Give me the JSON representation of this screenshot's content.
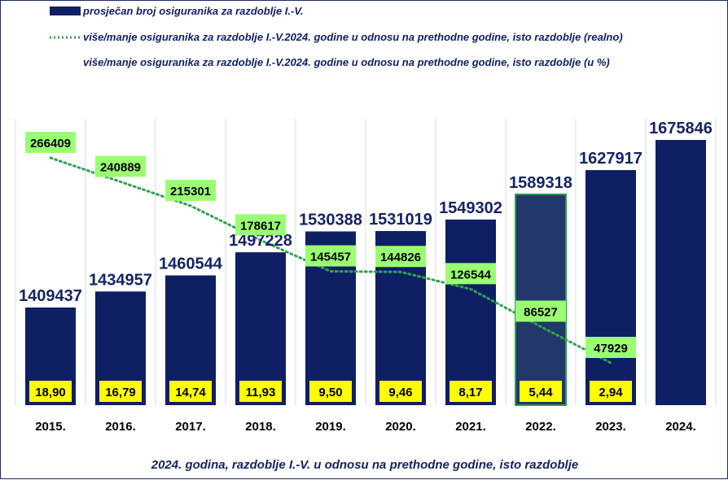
{
  "chart_data": {
    "type": "bar",
    "categories": [
      "2015.",
      "2016.",
      "2017.",
      "2018.",
      "2019.",
      "2020.",
      "2021.",
      "2022.",
      "2023.",
      "2024."
    ],
    "series": [
      {
        "name": "prosječan broj osiguranika za razdoblje I.-V.",
        "type": "bar",
        "values": [
          1409437,
          1434957,
          1460544,
          1497228,
          1530388,
          1531019,
          1549302,
          1589318,
          1627917,
          1675846
        ],
        "labels": [
          "1409437",
          "1434957",
          "1460544",
          "1497228",
          "1530388",
          "1531019",
          "1549302",
          "1589318",
          "1627917",
          "1675846"
        ]
      },
      {
        "name": "više/manje osiguranika za razdoblje I.-V.2024. godine u odnosu na prethodne godine, isto razdoblje (realno)",
        "type": "line",
        "values": [
          266409,
          240889,
          215301,
          178617,
          145457,
          144826,
          126544,
          86527,
          47929,
          null
        ],
        "labels": [
          "266409",
          "240889",
          "215301",
          "178617",
          "145457",
          "144826",
          "126544",
          "86527",
          "47929",
          ""
        ]
      },
      {
        "name": "više/manje osiguranika za razdoblje I.-V.2024. godine u odnosu na prethodne godine, isto razdoblje (u %)",
        "type": "label",
        "values": [
          18.9,
          16.79,
          14.74,
          11.93,
          9.5,
          9.46,
          8.17,
          5.44,
          2.94,
          null
        ],
        "labels": [
          "18,90",
          "16,79",
          "14,74",
          "11,93",
          "9,50",
          "9,46",
          "8,17",
          "5,44",
          "2,94",
          ""
        ]
      }
    ],
    "highlighted_category": "2022.",
    "footer": "2024. godina, razdoblje I.-V. u odnosu na prethodne godine, isto razdoblje",
    "legend_position": "top-left",
    "grid": "vertical",
    "ylim": [
      1300000,
      1700000
    ],
    "colors": {
      "bar": "#0f1f63",
      "bar_highlight": "#22376a",
      "bar_highlight_border": "#2e9b4b",
      "line": "#2ea34f",
      "line_label_bg": "#9bff73",
      "pct_label_bg": "#ffff00",
      "bar_label": "#152464",
      "grid": "#d9d9d9"
    }
  }
}
